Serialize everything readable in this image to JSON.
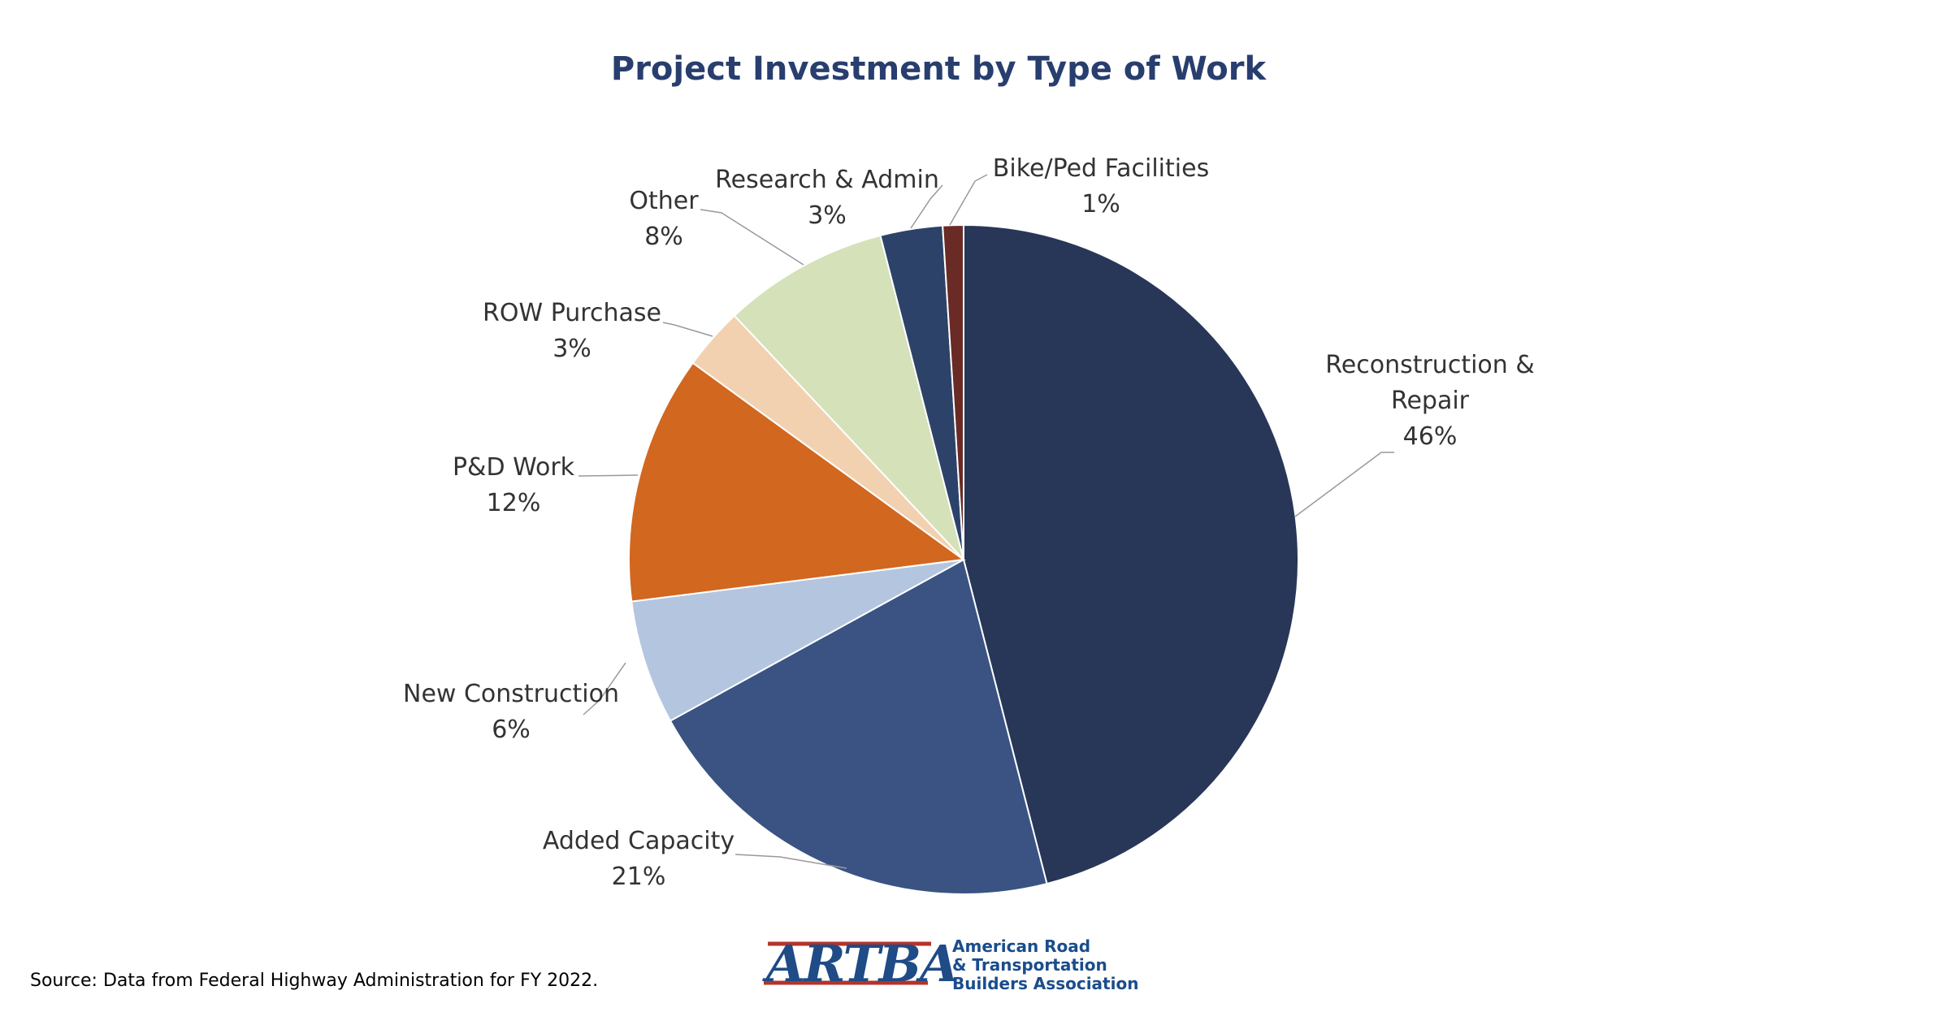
{
  "chart_data": {
    "type": "pie",
    "title": "Project Investment by Type of Work",
    "categories": [
      "Reconstruction & Repair",
      "Added Capacity",
      "New Construction",
      "P&D Work",
      "ROW Purchase",
      "Other",
      "Research & Admin",
      "Bike/Ped Facilities"
    ],
    "values": [
      46,
      21,
      6,
      12,
      3,
      8,
      3,
      1
    ],
    "value_labels": [
      "46%",
      "21%",
      "6%",
      "12%",
      "3%",
      "8%",
      "3%",
      "1%"
    ],
    "colors": [
      "#283657",
      "#3a5383",
      "#b4c5e0",
      "#d2671f",
      "#f2d1b1",
      "#d4e1b9",
      "#2d4269",
      "#6a2a25"
    ],
    "source": "Source: Data from Federal Highway Administration for FY 2022.",
    "logo": {
      "mark": "ARTBA",
      "lines": [
        "American Road",
        "& Transportation",
        "Builders Association"
      ]
    }
  }
}
